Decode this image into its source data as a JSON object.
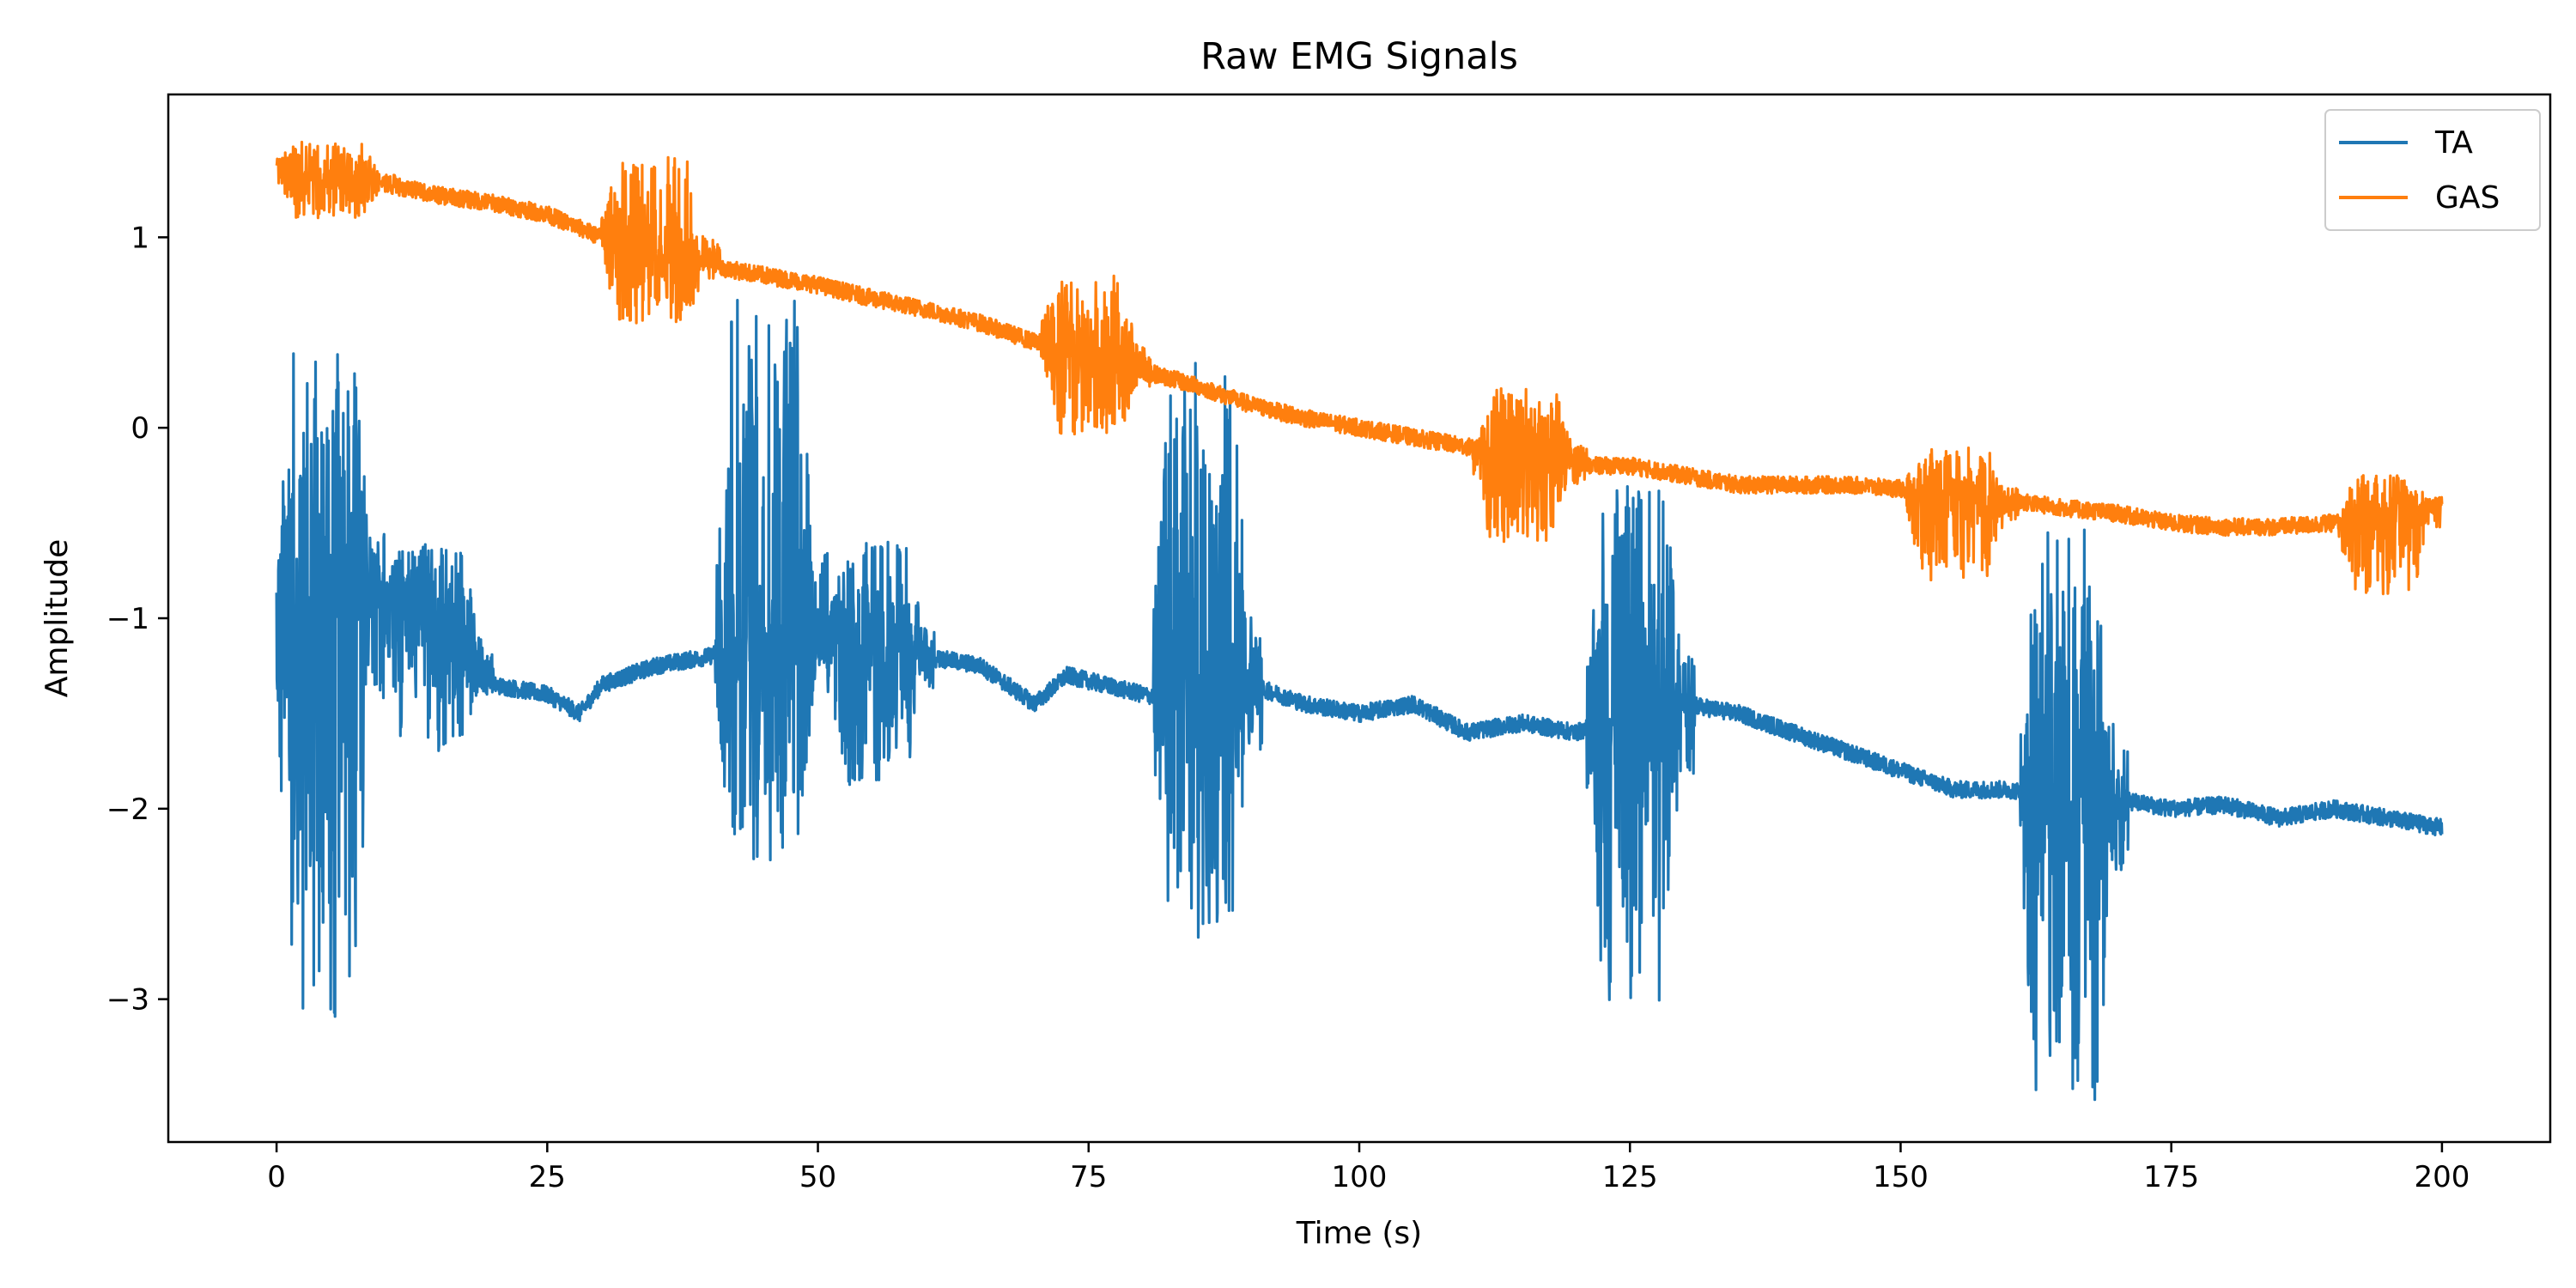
{
  "chart_data": {
    "type": "line",
    "title": "Raw EMG Signals",
    "xlabel": "Time (s)",
    "ylabel": "Amplitude",
    "xlim": [
      -10,
      210
    ],
    "ylim": [
      -3.75,
      1.75
    ],
    "xticks": [
      0,
      25,
      50,
      75,
      100,
      125,
      150,
      175,
      200
    ],
    "yticks": [
      -3,
      -2,
      -1,
      0,
      1
    ],
    "ytick_labels": [
      "−3",
      "−2",
      "−1",
      "0",
      "1"
    ],
    "grid": false,
    "legend_position": "top-right",
    "series": [
      {
        "name": "TA",
        "color": "#1f77b4",
        "baseline": [
          [
            0,
            -1.05
          ],
          [
            5,
            -1.0
          ],
          [
            10,
            -0.85
          ],
          [
            15,
            -1.0
          ],
          [
            20,
            -1.35
          ],
          [
            25,
            -1.4
          ],
          [
            28,
            -1.5
          ],
          [
            30,
            -1.35
          ],
          [
            35,
            -1.25
          ],
          [
            40,
            -1.2
          ],
          [
            45,
            -1.05
          ],
          [
            50,
            -1.1
          ],
          [
            55,
            -1.15
          ],
          [
            60,
            -1.2
          ],
          [
            65,
            -1.25
          ],
          [
            70,
            -1.45
          ],
          [
            73,
            -1.3
          ],
          [
            80,
            -1.4
          ],
          [
            85,
            -1.45
          ],
          [
            90,
            -1.35
          ],
          [
            95,
            -1.45
          ],
          [
            100,
            -1.5
          ],
          [
            105,
            -1.45
          ],
          [
            110,
            -1.6
          ],
          [
            115,
            -1.55
          ],
          [
            120,
            -1.6
          ],
          [
            125,
            -1.5
          ],
          [
            130,
            -1.45
          ],
          [
            135,
            -1.5
          ],
          [
            140,
            -1.6
          ],
          [
            145,
            -1.7
          ],
          [
            150,
            -1.8
          ],
          [
            155,
            -1.9
          ],
          [
            160,
            -1.9
          ],
          [
            165,
            -1.95
          ],
          [
            170,
            -1.95
          ],
          [
            175,
            -2.0
          ],
          [
            180,
            -1.98
          ],
          [
            185,
            -2.05
          ],
          [
            190,
            -2.0
          ],
          [
            195,
            -2.05
          ],
          [
            200,
            -2.1
          ]
        ],
        "bursts": [
          {
            "start": 0,
            "end": 10,
            "min": -3.15,
            "max": 0.4
          },
          {
            "start": 10,
            "end": 20,
            "min": -1.7,
            "max": -0.6
          },
          {
            "start": 40.5,
            "end": 51,
            "min": -2.3,
            "max": 0.7
          },
          {
            "start": 51,
            "end": 61,
            "min": -1.9,
            "max": -0.6
          },
          {
            "start": 81,
            "end": 91,
            "min": -2.7,
            "max": 0.35
          },
          {
            "start": 121,
            "end": 131,
            "min": -3.05,
            "max": -0.3
          },
          {
            "start": 161,
            "end": 171,
            "min": -3.55,
            "max": -0.5
          }
        ]
      },
      {
        "name": "GAS",
        "color": "#ff7f0e",
        "baseline": [
          [
            0,
            1.38
          ],
          [
            5,
            1.28
          ],
          [
            10,
            1.28
          ],
          [
            15,
            1.22
          ],
          [
            20,
            1.18
          ],
          [
            25,
            1.12
          ],
          [
            30,
            1.0
          ],
          [
            35,
            0.92
          ],
          [
            40,
            0.85
          ],
          [
            45,
            0.8
          ],
          [
            50,
            0.75
          ],
          [
            55,
            0.68
          ],
          [
            60,
            0.62
          ],
          [
            65,
            0.55
          ],
          [
            70,
            0.45
          ],
          [
            75,
            0.35
          ],
          [
            80,
            0.3
          ],
          [
            85,
            0.22
          ],
          [
            90,
            0.12
          ],
          [
            95,
            0.05
          ],
          [
            100,
            0.0
          ],
          [
            105,
            -0.05
          ],
          [
            110,
            -0.1
          ],
          [
            115,
            -0.15
          ],
          [
            120,
            -0.2
          ],
          [
            125,
            -0.2
          ],
          [
            130,
            -0.25
          ],
          [
            135,
            -0.3
          ],
          [
            140,
            -0.3
          ],
          [
            145,
            -0.3
          ],
          [
            150,
            -0.32
          ],
          [
            155,
            -0.35
          ],
          [
            160,
            -0.38
          ],
          [
            165,
            -0.42
          ],
          [
            170,
            -0.45
          ],
          [
            175,
            -0.5
          ],
          [
            180,
            -0.52
          ],
          [
            185,
            -0.52
          ],
          [
            190,
            -0.5
          ],
          [
            195,
            -0.45
          ],
          [
            200,
            -0.4
          ]
        ],
        "bursts": [
          {
            "start": 0,
            "end": 11,
            "min": 1.1,
            "max": 1.5
          },
          {
            "start": 30,
            "end": 41,
            "min": 0.55,
            "max": 1.42
          },
          {
            "start": 70.5,
            "end": 81,
            "min": -0.05,
            "max": 0.8
          },
          {
            "start": 110.5,
            "end": 121,
            "min": -0.6,
            "max": 0.22
          },
          {
            "start": 150.5,
            "end": 161,
            "min": -0.8,
            "max": -0.1
          },
          {
            "start": 190.5,
            "end": 200,
            "min": -0.88,
            "max": -0.25
          }
        ]
      }
    ]
  }
}
